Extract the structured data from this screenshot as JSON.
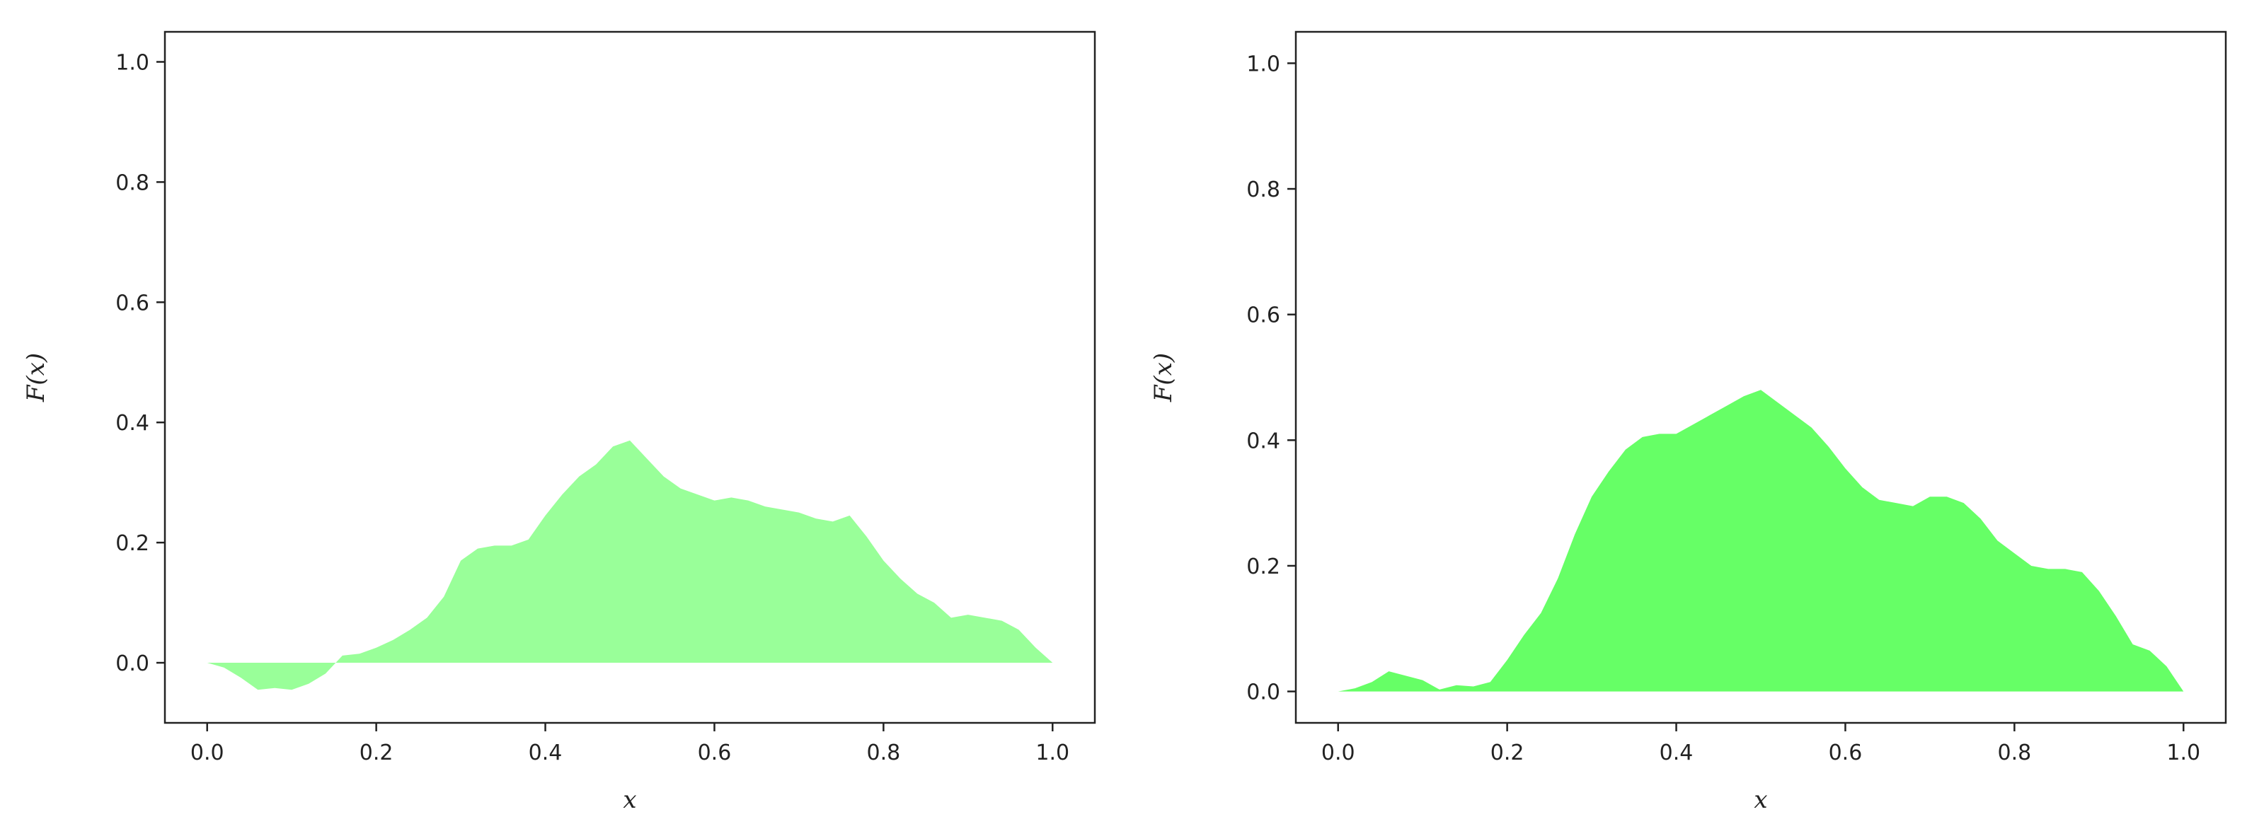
{
  "chart_data": [
    {
      "type": "area",
      "title": "",
      "xlabel": "x",
      "ylabel": "F(x)",
      "xlim": [
        -0.05,
        1.05
      ],
      "ylim": [
        -0.1,
        1.05
      ],
      "xticks": [
        0.0,
        0.2,
        0.4,
        0.6,
        0.8,
        1.0
      ],
      "yticks": [
        0.0,
        0.2,
        0.4,
        0.6,
        0.8,
        1.0
      ],
      "xtick_labels": [
        "0.0",
        "0.2",
        "0.4",
        "0.6",
        "0.8",
        "1.0"
      ],
      "ytick_labels": [
        "0.0",
        "0.2",
        "0.4",
        "0.6",
        "0.8",
        "1.0"
      ],
      "grid": false,
      "fill_color": "#99ff99",
      "x": [
        0.0,
        0.02,
        0.04,
        0.06,
        0.08,
        0.1,
        0.12,
        0.14,
        0.16,
        0.18,
        0.2,
        0.22,
        0.24,
        0.26,
        0.28,
        0.3,
        0.32,
        0.34,
        0.36,
        0.38,
        0.4,
        0.42,
        0.44,
        0.46,
        0.48,
        0.5,
        0.52,
        0.54,
        0.56,
        0.58,
        0.6,
        0.62,
        0.64,
        0.66,
        0.68,
        0.7,
        0.72,
        0.74,
        0.76,
        0.78,
        0.8,
        0.82,
        0.84,
        0.86,
        0.88,
        0.9,
        0.92,
        0.94,
        0.96,
        0.98,
        1.0
      ],
      "values": [
        0.0,
        -0.008,
        -0.025,
        -0.045,
        -0.042,
        -0.045,
        -0.035,
        -0.018,
        0.012,
        0.015,
        0.025,
        0.038,
        0.055,
        0.075,
        0.11,
        0.17,
        0.19,
        0.195,
        0.195,
        0.205,
        0.245,
        0.28,
        0.31,
        0.33,
        0.36,
        0.37,
        0.34,
        0.31,
        0.29,
        0.28,
        0.27,
        0.275,
        0.27,
        0.26,
        0.255,
        0.25,
        0.24,
        0.235,
        0.245,
        0.21,
        0.17,
        0.14,
        0.115,
        0.1,
        0.075,
        0.08,
        0.075,
        0.07,
        0.055,
        0.025,
        0.0
      ]
    },
    {
      "type": "area",
      "title": "",
      "xlabel": "x",
      "ylabel": "F(x)",
      "xlim": [
        -0.05,
        1.05
      ],
      "ylim": [
        -0.05,
        1.05
      ],
      "xticks": [
        0.0,
        0.2,
        0.4,
        0.6,
        0.8,
        1.0
      ],
      "yticks": [
        0.0,
        0.2,
        0.4,
        0.6,
        0.8,
        1.0
      ],
      "xtick_labels": [
        "0.0",
        "0.2",
        "0.4",
        "0.6",
        "0.8",
        "1.0"
      ],
      "ytick_labels": [
        "0.0",
        "0.2",
        "0.4",
        "0.6",
        "0.8",
        "1.0"
      ],
      "grid": false,
      "fill_color": "#66ff66",
      "x": [
        0.0,
        0.02,
        0.04,
        0.06,
        0.08,
        0.1,
        0.12,
        0.14,
        0.16,
        0.18,
        0.2,
        0.22,
        0.24,
        0.26,
        0.28,
        0.3,
        0.32,
        0.34,
        0.36,
        0.38,
        0.4,
        0.42,
        0.44,
        0.46,
        0.48,
        0.5,
        0.52,
        0.54,
        0.56,
        0.58,
        0.6,
        0.62,
        0.64,
        0.66,
        0.68,
        0.7,
        0.72,
        0.74,
        0.76,
        0.78,
        0.8,
        0.82,
        0.84,
        0.86,
        0.88,
        0.9,
        0.92,
        0.94,
        0.96,
        0.98,
        1.0
      ],
      "values": [
        0.0,
        0.005,
        0.015,
        0.032,
        0.025,
        0.018,
        0.003,
        0.01,
        0.008,
        0.015,
        0.05,
        0.09,
        0.125,
        0.18,
        0.25,
        0.31,
        0.35,
        0.385,
        0.405,
        0.41,
        0.41,
        0.425,
        0.44,
        0.455,
        0.47,
        0.48,
        0.46,
        0.44,
        0.42,
        0.39,
        0.355,
        0.325,
        0.305,
        0.3,
        0.295,
        0.31,
        0.31,
        0.3,
        0.275,
        0.24,
        0.22,
        0.2,
        0.195,
        0.195,
        0.19,
        0.16,
        0.12,
        0.075,
        0.065,
        0.04,
        0.0
      ]
    }
  ]
}
